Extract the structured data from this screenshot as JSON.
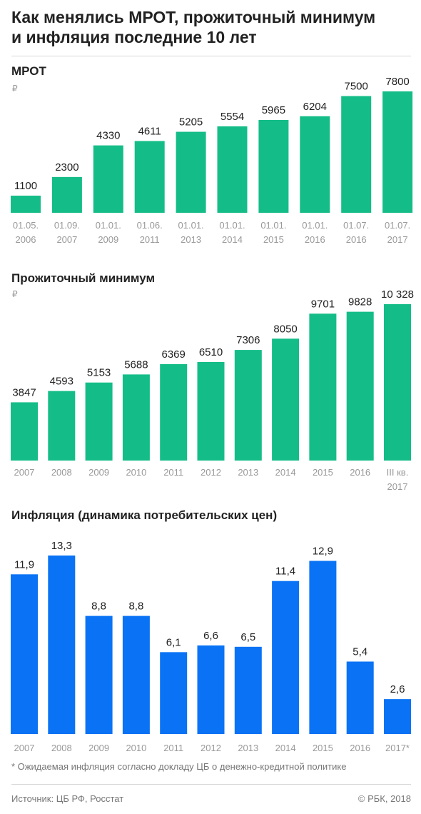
{
  "title_lines": [
    "Как менялись МРОТ, прожиточный минимум",
    "и инфляция последние 10 лет"
  ],
  "footnote": "* Ожидаемая инфляция согласно докладу ЦБ о денежно-кредитной политике",
  "source": "Источник: ЦБ РФ, Росстат",
  "copyright": "© РБК, 2018",
  "colors": {
    "green": "#14bd87",
    "blue": "#0a73f5"
  },
  "chart_data": [
    {
      "type": "bar",
      "title": "МРОТ",
      "unit": "₽",
      "color": "#14bd87",
      "categories": [
        [
          "01.05.",
          "2006"
        ],
        [
          "01.09.",
          "2007"
        ],
        [
          "01.01.",
          "2009"
        ],
        [
          "01.06.",
          "2011"
        ],
        [
          "01.01.",
          "2013"
        ],
        [
          "01.01.",
          "2014"
        ],
        [
          "01.01.",
          "2015"
        ],
        [
          "01.01.",
          "2016"
        ],
        [
          "01.07.",
          "2016"
        ],
        [
          "01.07.",
          "2017"
        ]
      ],
      "values": [
        1100,
        2300,
        4330,
        4611,
        5205,
        5554,
        5965,
        6204,
        7500,
        7800
      ],
      "labels": [
        "1100",
        "2300",
        "4330",
        "4611",
        "5205",
        "5554",
        "5965",
        "6204",
        "7500",
        "7800"
      ],
      "ylim": [
        0,
        7800
      ],
      "grid": false
    },
    {
      "type": "bar",
      "title": "Прожиточный минимум",
      "unit": "₽",
      "color": "#14bd87",
      "categories": [
        [
          "2007"
        ],
        [
          "2008"
        ],
        [
          "2009"
        ],
        [
          "2010"
        ],
        [
          "2011"
        ],
        [
          "2012"
        ],
        [
          "2013"
        ],
        [
          "2014"
        ],
        [
          "2015"
        ],
        [
          "2016"
        ],
        [
          "III кв.",
          "2017"
        ]
      ],
      "values": [
        3847,
        4593,
        5153,
        5688,
        6369,
        6510,
        7306,
        8050,
        9701,
        9828,
        10328
      ],
      "labels": [
        "3847",
        "4593",
        "5153",
        "5688",
        "6369",
        "6510",
        "7306",
        "8050",
        "9701",
        "9828",
        "10 328"
      ],
      "ylim": [
        0,
        10328
      ],
      "grid": false
    },
    {
      "type": "bar",
      "title": "Инфляция (динамика потребительских цен)",
      "color": "#0a73f5",
      "categories": [
        [
          "2007"
        ],
        [
          "2008"
        ],
        [
          "2009"
        ],
        [
          "2010"
        ],
        [
          "2011"
        ],
        [
          "2012"
        ],
        [
          "2013"
        ],
        [
          "2014"
        ],
        [
          "2015"
        ],
        [
          "2016"
        ],
        [
          "2017*"
        ]
      ],
      "values": [
        11.9,
        13.3,
        8.8,
        8.8,
        6.1,
        6.6,
        6.5,
        11.4,
        12.9,
        5.4,
        2.6
      ],
      "labels": [
        "11,9",
        "13,3",
        "8,8",
        "8,8",
        "6,1",
        "6,6",
        "6,5",
        "11,4",
        "12,9",
        "5,4",
        "2,6"
      ],
      "ylim": [
        0,
        13.3
      ],
      "grid": false
    }
  ]
}
